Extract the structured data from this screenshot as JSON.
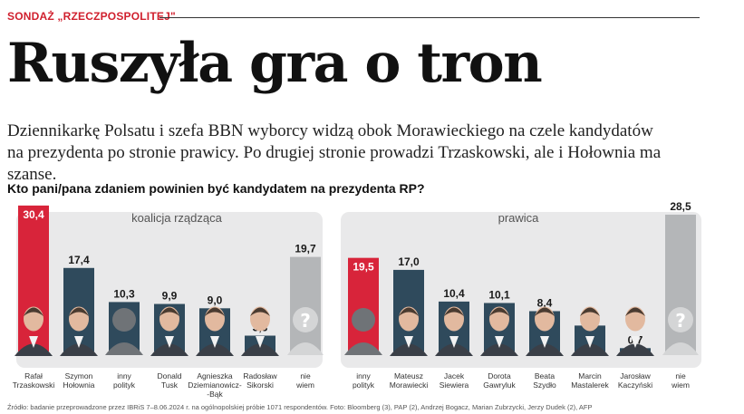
{
  "article": {
    "kicker": "SONDAŻ „RZECZPOSPOLITEJ\"",
    "title": "Ruszyła gra o tron",
    "lead_line1": "Dziennikarkę Polsatu i szefa BBN wyborcy widzą obok Morawieckiego na czele kandydatów",
    "lead_line2": "na prezydenta po stronie prawicy. Po drugiej stronie prowadzi Trzaskowski, ale i Hołownia ma szanse.",
    "source": "Źródło: badanie przeprowadzone przez IBRiS 7–8.06.2024 r. na ogólnopolskiej próbie 1071 respondentów. Foto: Bloomberg (3), PAP (2), Andrzej Bogacz, Marian Zubrzycki, Jerzy Dudek (2), AFP"
  },
  "chart_data": [
    {
      "type": "bar",
      "title": "Kto pani/pana zdaniem powinien być kandydatem na prezydenta RP?",
      "panel_label": "koalicja rządząca",
      "categories": [
        [
          "Rafał",
          "Trzaskowski"
        ],
        [
          "Szymon",
          "Hołownia"
        ],
        [
          "inny",
          "polityk"
        ],
        [
          "Donald",
          "Tusk"
        ],
        [
          "Agnieszka",
          "Dziemianowicz-",
          "-Bąk"
        ],
        [
          "Radosław",
          "Sikorski"
        ],
        [
          "nie",
          "wiem"
        ]
      ],
      "values": [
        30.4,
        17.4,
        10.3,
        9.9,
        9.0,
        3.3,
        19.7
      ],
      "value_labels": [
        "30,4",
        "17,4",
        "10,3",
        "9,9",
        "9,0",
        "3,3",
        "19,7"
      ],
      "bar_kinds": [
        "leader",
        "normal",
        "placeholder",
        "normal",
        "normal",
        "normal",
        "unknown"
      ],
      "ylim": [
        0,
        31
      ]
    },
    {
      "type": "bar",
      "panel_label": "prawica",
      "categories": [
        [
          "inny",
          "polityk"
        ],
        [
          "Mateusz",
          "Morawiecki"
        ],
        [
          "Jacek",
          "Siewiera"
        ],
        [
          "Dorota",
          "Gawryluk"
        ],
        [
          "Beata",
          "Szydło"
        ],
        [
          "Marcin",
          "Mastalerek"
        ],
        [
          "Jarosław",
          "Kaczyński"
        ],
        [
          "nie",
          "wiem"
        ]
      ],
      "values": [
        19.5,
        17.0,
        10.4,
        10.1,
        8.4,
        5.4,
        0.7,
        28.5
      ],
      "value_labels": [
        "19,5",
        "17,0",
        "10,4",
        "10,1",
        "8,4",
        "5,4",
        "0,7",
        "28,5"
      ],
      "bar_kinds": [
        "leader",
        "normal",
        "normal",
        "normal",
        "normal",
        "normal",
        "normal",
        "unknown"
      ],
      "ylim": [
        0,
        31
      ]
    }
  ],
  "colors": {
    "leader": "#d8243a",
    "normal": "#2f4a5c",
    "placeholder": "#2f4a5c",
    "unknown": "#b4b6b8",
    "panel": "#e9e9ea",
    "kicker": "#d0202e"
  }
}
